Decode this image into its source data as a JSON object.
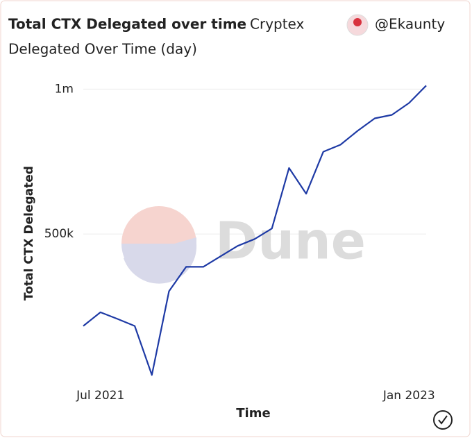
{
  "chart_data": {
    "type": "line",
    "title": "Total CTX Delegated over time",
    "project": "Cryptex",
    "subtitle": "Delegated Over Time (day)",
    "author": "@Ekaunty",
    "watermark": "Dune",
    "x_label": "Time",
    "y_label": "Total CTX Delegated",
    "x": [
      "2021-06",
      "2021-07",
      "2021-08",
      "2021-09",
      "2021-10",
      "2021-11",
      "2021-12",
      "2022-01",
      "2022-02",
      "2022-03",
      "2022-04",
      "2022-05",
      "2022-06",
      "2022-07",
      "2022-08",
      "2022-09",
      "2022-10",
      "2022-11",
      "2022-12",
      "2023-01",
      "2023-02"
    ],
    "values": [
      183000,
      230000,
      207000,
      183000,
      14000,
      303000,
      387000,
      387000,
      423000,
      459000,
      483000,
      519000,
      728000,
      639000,
      784000,
      808000,
      856000,
      899000,
      911000,
      952000,
      1012000
    ],
    "color": "#1e3aa5",
    "xlim": [
      "2021-06",
      "2023-02"
    ],
    "xticks": [
      {
        "value": "2021-07",
        "label": "Jul 2021"
      },
      {
        "value": "2023-01",
        "label": "Jan 2023"
      }
    ],
    "ylim": [
      0,
      1020000
    ],
    "yticks": [
      {
        "value": 500000,
        "label": "500k"
      },
      {
        "value": 1000000,
        "label": "1m"
      }
    ],
    "grid": true
  }
}
